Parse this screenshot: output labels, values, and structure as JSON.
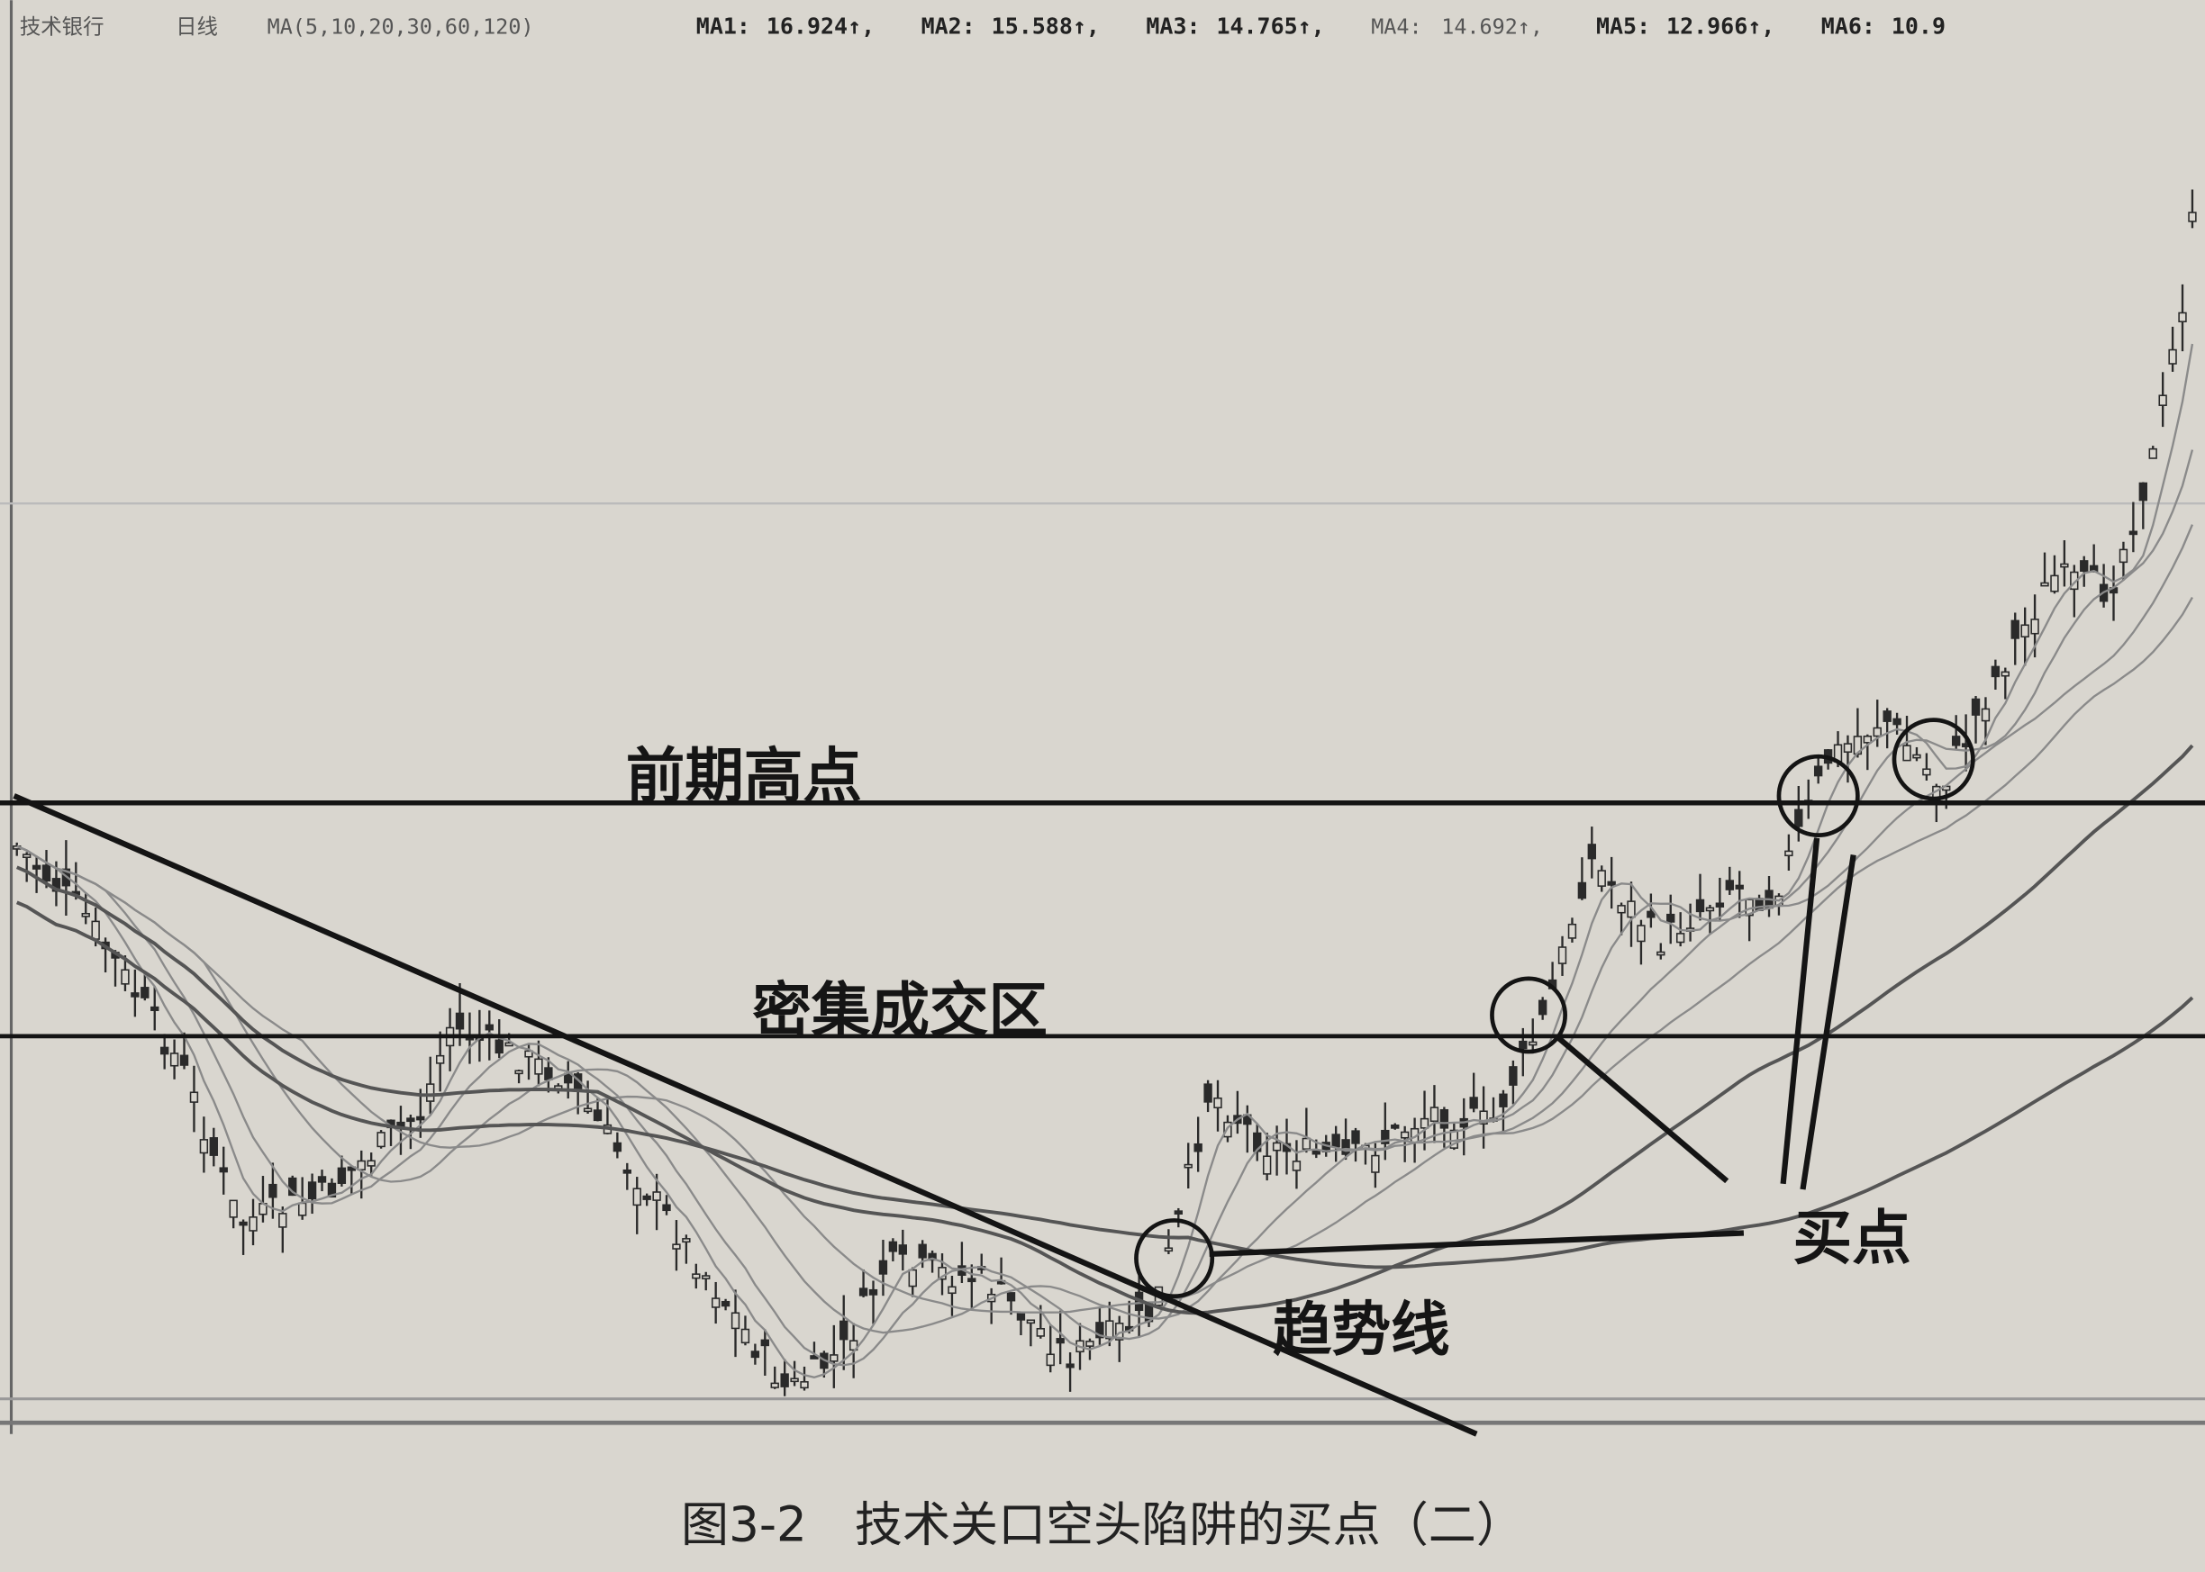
{
  "header": {
    "stock_name": "技术银行",
    "period": "日线",
    "ma_params": "MA(5,10,20,30,60,120)",
    "ma_values": [
      {
        "label": "MA1:",
        "value": "16.924↑,"
      },
      {
        "label": "MA2:",
        "value": "15.588↑,"
      },
      {
        "label": "MA3:",
        "value": "14.765↑,"
      },
      {
        "label": "MA4:",
        "value": "14.692↑,"
      },
      {
        "label": "MA5:",
        "value": "12.966↑,"
      },
      {
        "label": "MA6:",
        "value": "10.9"
      }
    ]
  },
  "chart_data": {
    "type": "candlestick",
    "title": "",
    "moving_averages": [
      "MA1",
      "MA2",
      "MA3",
      "MA4",
      "MA5",
      "MA6"
    ],
    "annotations": {
      "previous_high": "前期高点",
      "dense_volume_zone": "密集成交区",
      "trend_line": "趋势线",
      "buy_point": "买点"
    },
    "buy_point_markers": 4,
    "colors": {
      "ink": "#1a1a1a",
      "candles": "#2a2a2a",
      "ma_lines": "#777777",
      "paper": "#d9d6cf"
    }
  },
  "caption": "图3-2　技术关口空头陷阱的买点（二）"
}
